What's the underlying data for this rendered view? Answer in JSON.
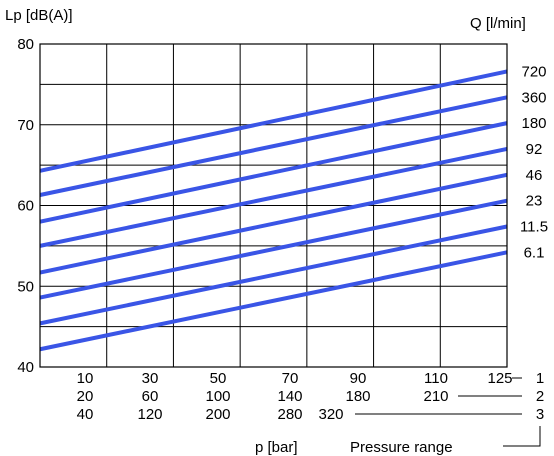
{
  "chart_data": {
    "type": "line",
    "ylabel": "Lp [dB(A)]",
    "xlabel": "p [bar]",
    "legend_title": "Q [l/min]",
    "pressure_range_label": "Pressure range",
    "ylim": [
      40,
      80
    ],
    "y_ticks": [
      "40",
      "50",
      "60",
      "70",
      "80"
    ],
    "xlim": [
      0,
      125
    ],
    "x_scales": [
      {
        "range": "1",
        "ticks": [
          "10",
          "30",
          "50",
          "70",
          "90",
          "110",
          "125"
        ]
      },
      {
        "range": "2",
        "ticks": [
          "20",
          "60",
          "100",
          "140",
          "180",
          "210"
        ]
      },
      {
        "range": "3",
        "ticks": [
          "40",
          "120",
          "200",
          "280",
          "320"
        ]
      }
    ],
    "series": [
      {
        "name": "720",
        "x": [
          0,
          125
        ],
        "values": [
          64.3,
          76.6
        ]
      },
      {
        "name": "360",
        "x": [
          0,
          125
        ],
        "values": [
          61.3,
          73.4
        ]
      },
      {
        "name": "180",
        "x": [
          0,
          125
        ],
        "values": [
          58.0,
          70.2
        ]
      },
      {
        "name": "92",
        "x": [
          0,
          125
        ],
        "values": [
          55.0,
          67.0
        ]
      },
      {
        "name": "46",
        "x": [
          0,
          125
        ],
        "values": [
          51.7,
          63.8
        ]
      },
      {
        "name": "23",
        "x": [
          0,
          125
        ],
        "values": [
          48.6,
          60.6
        ]
      },
      {
        "name": "11.5",
        "x": [
          0,
          125
        ],
        "values": [
          45.4,
          57.4
        ]
      },
      {
        "name": "6.1",
        "x": [
          0,
          125
        ],
        "values": [
          42.2,
          54.2
        ]
      }
    ]
  }
}
